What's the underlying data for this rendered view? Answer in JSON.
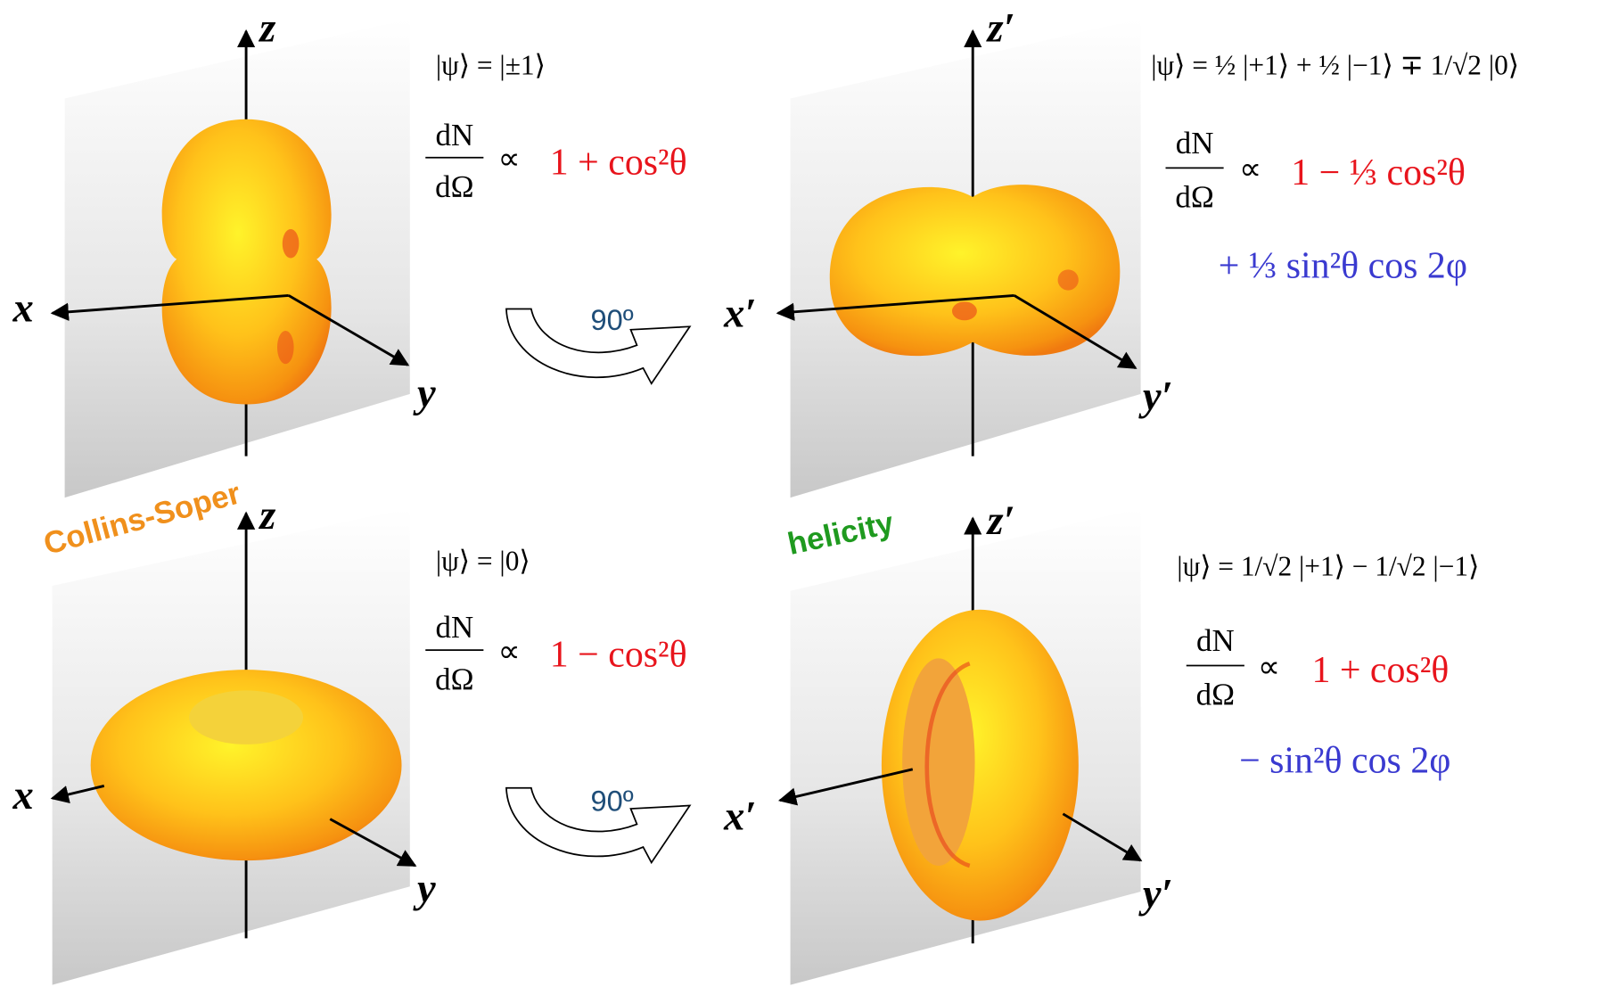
{
  "panels": [
    {
      "axes": {
        "z": "z",
        "x": "x",
        "y": "y"
      },
      "state": "|ψ⟩ = |±1⟩",
      "rate_numerator": "dN",
      "rate_denominator": "dΩ",
      "proportional": "∝",
      "distribution": "1 + cos²θ"
    },
    {
      "axes": {
        "z": "z′",
        "x": "x′",
        "y": "y′"
      },
      "state": "|ψ⟩ = ½ |+1⟩ + ½ |−1⟩ ∓ 1/√2 |0⟩",
      "rate_numerator": "dN",
      "rate_denominator": "dΩ",
      "proportional": "∝",
      "distribution": "1 − ⅓ cos²θ",
      "distribution_extra": "+ ⅓ sin²θ cos 2φ"
    },
    {
      "axes": {
        "z": "z",
        "x": "x",
        "y": "y"
      },
      "state": "|ψ⟩ = |0⟩",
      "rate_numerator": "dN",
      "rate_denominator": "dΩ",
      "proportional": "∝",
      "distribution": "1 − cos²θ"
    },
    {
      "axes": {
        "z": "z′",
        "x": "x′",
        "y": "y′"
      },
      "state": "|ψ⟩ = 1/√2 |+1⟩ − 1/√2 |−1⟩",
      "rate_numerator": "dN",
      "rate_denominator": "dΩ",
      "proportional": "∝",
      "distribution": "1 + cos²θ",
      "distribution_extra": "− sin²θ cos 2φ"
    }
  ],
  "rotations": [
    "90º",
    "90º"
  ],
  "frames": {
    "collins_soper": "Collins-Soper",
    "helicity": "helicity"
  }
}
